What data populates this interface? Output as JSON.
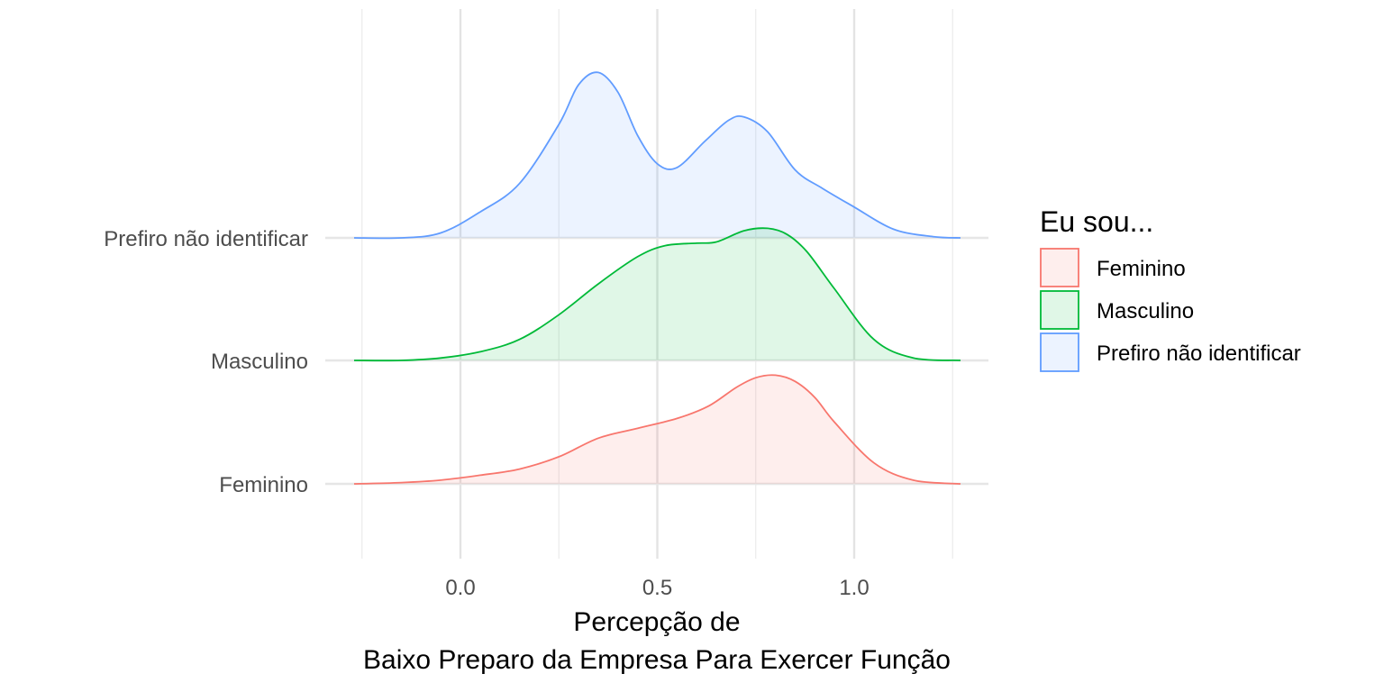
{
  "chart_data": {
    "type": "area",
    "subtype": "ridgeline-density",
    "xlabel_line1": "Percepção de",
    "xlabel_line2": "Baixo Preparo da Empresa Para Exercer Função",
    "xlim": [
      -0.27,
      1.27
    ],
    "x_ticks": [
      {
        "value": 0.0,
        "label": "0.0"
      },
      {
        "value": 0.5,
        "label": "0.5"
      },
      {
        "value": 1.0,
        "label": "1.0"
      }
    ],
    "grid": true,
    "legend": {
      "title": "Eu sou...",
      "position": "right",
      "entries": [
        "Feminino",
        "Masculino",
        "Prefiro não identificar"
      ]
    },
    "series": [
      {
        "name": "Feminino",
        "color": "#F8766D",
        "x": [
          -0.27,
          -0.15,
          -0.05,
          0.05,
          0.15,
          0.25,
          0.35,
          0.45,
          0.55,
          0.63,
          0.7,
          0.75,
          0.8,
          0.85,
          0.9,
          0.95,
          1.05,
          1.15,
          1.27
        ],
        "density": [
          0.0,
          0.01,
          0.03,
          0.07,
          0.12,
          0.22,
          0.37,
          0.45,
          0.53,
          0.63,
          0.78,
          0.86,
          0.88,
          0.83,
          0.7,
          0.5,
          0.17,
          0.03,
          0.0
        ]
      },
      {
        "name": "Masculino",
        "color": "#00BA38",
        "x": [
          -0.27,
          -0.15,
          -0.05,
          0.05,
          0.15,
          0.25,
          0.35,
          0.45,
          0.52,
          0.6,
          0.65,
          0.72,
          0.78,
          0.83,
          0.88,
          0.95,
          1.05,
          1.15,
          1.27
        ],
        "density": [
          0.0,
          0.0,
          0.02,
          0.07,
          0.17,
          0.37,
          0.62,
          0.84,
          0.93,
          0.95,
          0.96,
          1.05,
          1.07,
          1.02,
          0.88,
          0.58,
          0.17,
          0.02,
          0.0
        ]
      },
      {
        "name": "Prefiro não identificar",
        "color": "#619CFF",
        "x": [
          -0.27,
          -0.15,
          -0.05,
          0.05,
          0.15,
          0.25,
          0.3,
          0.35,
          0.4,
          0.45,
          0.5,
          0.55,
          0.62,
          0.68,
          0.72,
          0.78,
          0.85,
          0.92,
          1.0,
          1.1,
          1.2,
          1.27
        ],
        "density": [
          0.0,
          0.0,
          0.04,
          0.21,
          0.44,
          0.92,
          1.24,
          1.34,
          1.18,
          0.83,
          0.6,
          0.57,
          0.78,
          0.95,
          0.98,
          0.86,
          0.55,
          0.4,
          0.25,
          0.07,
          0.01,
          0.0
        ]
      }
    ]
  }
}
